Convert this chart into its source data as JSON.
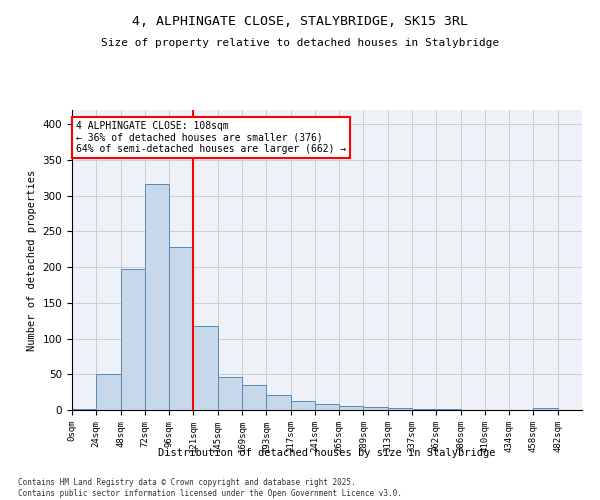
{
  "title1": "4, ALPHINGATE CLOSE, STALYBRIDGE, SK15 3RL",
  "title2": "Size of property relative to detached houses in Stalybridge",
  "xlabel": "Distribution of detached houses by size in Stalybridge",
  "ylabel": "Number of detached properties",
  "bin_labels": [
    "0sqm",
    "24sqm",
    "48sqm",
    "72sqm",
    "96sqm",
    "121sqm",
    "145sqm",
    "169sqm",
    "193sqm",
    "217sqm",
    "241sqm",
    "265sqm",
    "289sqm",
    "313sqm",
    "337sqm",
    "362sqm",
    "386sqm",
    "410sqm",
    "434sqm",
    "458sqm",
    "482sqm"
  ],
  "bar_values": [
    2,
    51,
    197,
    316,
    228,
    117,
    46,
    35,
    21,
    13,
    8,
    5,
    4,
    3,
    2,
    1,
    0,
    0,
    0,
    3,
    0
  ],
  "bar_color": "#c8d8eb",
  "bar_edge_color": "#5588bb",
  "red_line_x": 5,
  "annotation_text": "4 ALPHINGATE CLOSE: 108sqm\n← 36% of detached houses are smaller (376)\n64% of semi-detached houses are larger (662) →",
  "annotation_box_color": "white",
  "annotation_box_edge_color": "red",
  "red_line_color": "red",
  "ylim": [
    0,
    420
  ],
  "yticks": [
    0,
    50,
    100,
    150,
    200,
    250,
    300,
    350,
    400
  ],
  "grid_color": "#cccccc",
  "bg_color": "#eef2f8",
  "footer1": "Contains HM Land Registry data © Crown copyright and database right 2025.",
  "footer2": "Contains public sector information licensed under the Open Government Licence v3.0."
}
